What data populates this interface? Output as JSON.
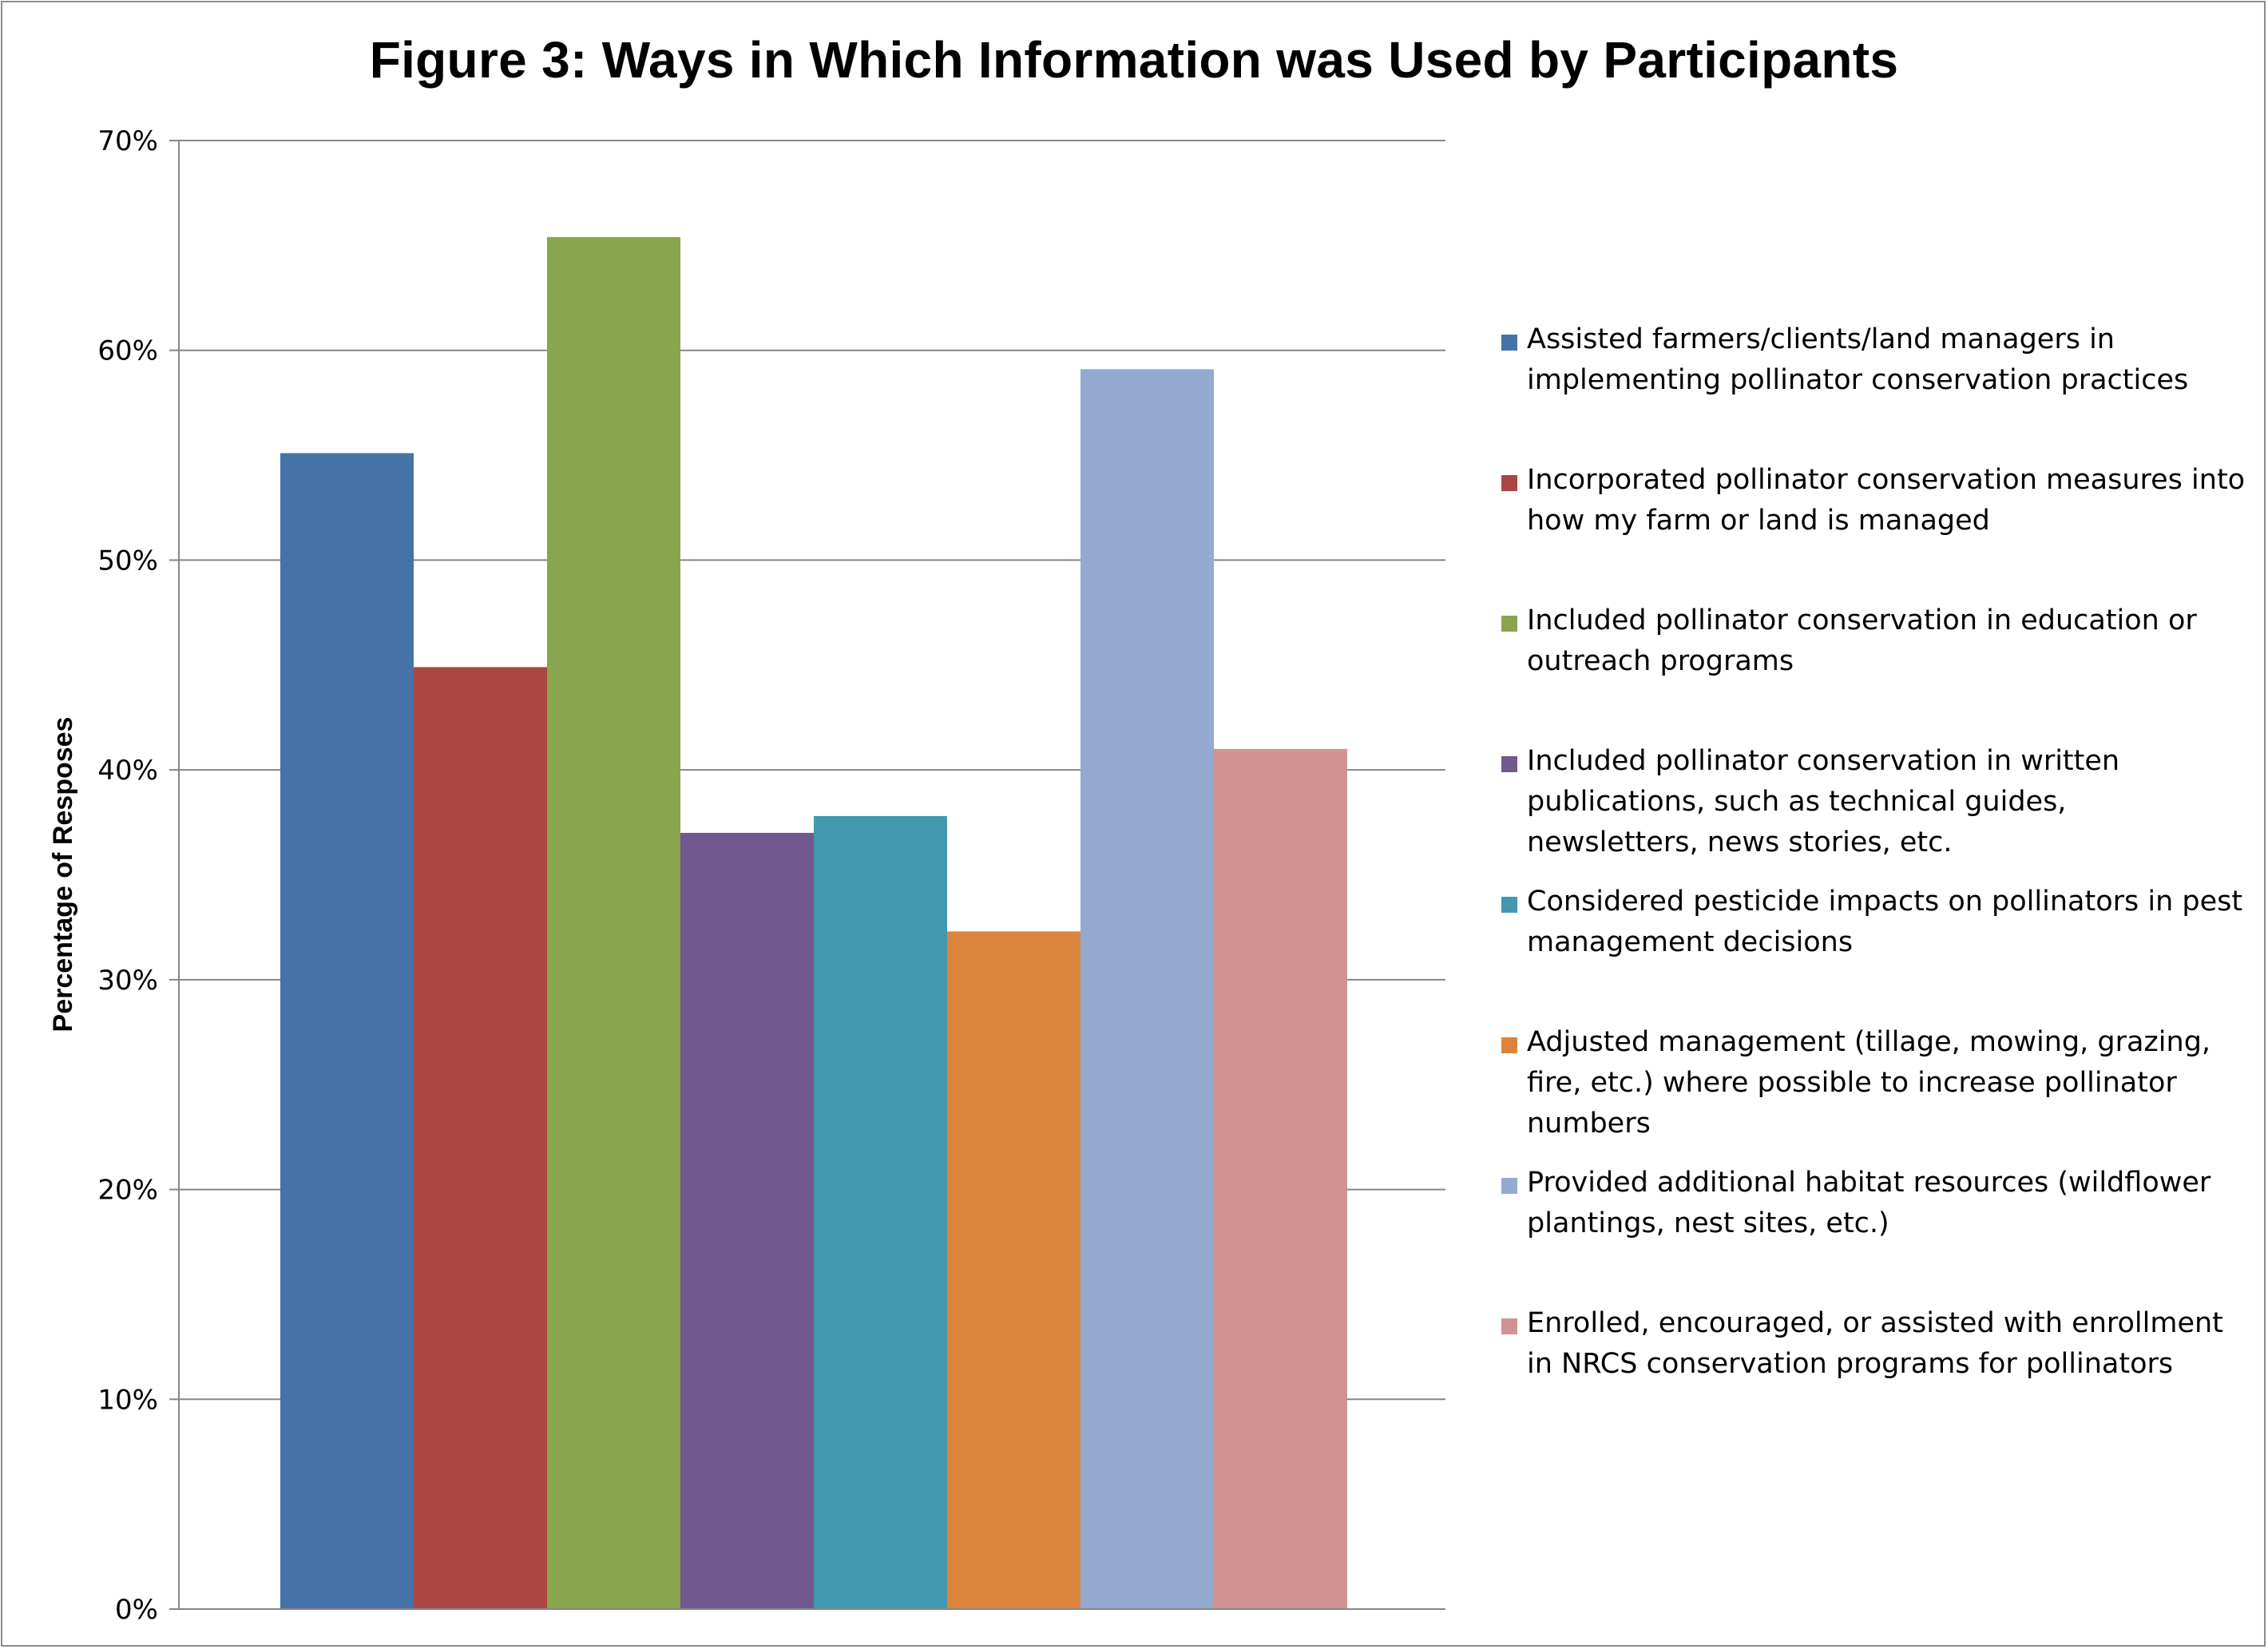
{
  "chart_data": {
    "type": "bar",
    "title": "Figure 3: Ways in Which Information was Used by Participants",
    "xlabel": "",
    "ylabel": "Percentage of Resposes",
    "ylim": [
      0,
      70
    ],
    "yticks": [
      "0%",
      "10%",
      "20%",
      "30%",
      "40%",
      "50%",
      "60%",
      "70%"
    ],
    "grid": true,
    "legend_position": "right",
    "series": [
      {
        "name": "Assisted farmers/clients/land managers in implementing pollinator conservation practices",
        "value": 55.1,
        "color": "#4572a7"
      },
      {
        "name": "Incorporated pollinator conservation measures into how my farm or land is managed",
        "value": 44.9,
        "color": "#aa4643"
      },
      {
        "name": "Included pollinator conservation in education or outreach programs",
        "value": 65.4,
        "color": "#89a54e"
      },
      {
        "name": "Included pollinator conservation in written publications, such as technical guides, newsletters, news stories, etc.",
        "value": 37.0,
        "color": "#71588f"
      },
      {
        "name": "Considered pesticide impacts on pollinators in pest management decisions",
        "value": 37.8,
        "color": "#4198af"
      },
      {
        "name": "Adjusted management (tillage, mowing, grazing, fire, etc.) where possible to increase pollinator numbers",
        "value": 32.3,
        "color": "#db843d"
      },
      {
        "name": "Provided additional habitat resources (wildflower plantings, nest sites, etc.)",
        "value": 59.1,
        "color": "#93a9cf"
      },
      {
        "name": "Enrolled, encouraged, or assisted with enrollment in NRCS conservation programs for pollinators",
        "value": 41.0,
        "color": "#d19392"
      }
    ]
  }
}
